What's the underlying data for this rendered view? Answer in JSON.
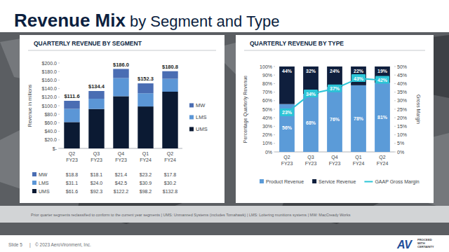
{
  "slide": {
    "title_bold": "Revenue Mix",
    "title_rest": "by Segment and Type",
    "footnote": "Prior quarter segments reclassified to conform to the current year segments | UMS: Unmanned Systems (includes Tomahawk) | LMS: Loitering munitions systems | MW: MacCready Works",
    "slide_number": "Slide 5",
    "separator": "|",
    "copyright": "© 2023 AeroVironment, Inc.",
    "logo": "AV",
    "tagline": [
      "PROCEED",
      "WITH",
      "CERTAINTY"
    ]
  },
  "chart_data": [
    {
      "type": "bar",
      "title": "QUARTERLY REVENUE BY SEGMENT",
      "stacked": true,
      "categories": [
        "Q2 FY23",
        "Q3 FY23",
        "Q4 FY23",
        "Q1 FY24",
        "Q2 FY24"
      ],
      "y_label": "Revenue in millions",
      "ylim": [
        0,
        200
      ],
      "yticks": [
        {
          "value": 0,
          "label": "$-"
        },
        {
          "value": 20,
          "label": "$20.0"
        },
        {
          "value": 40,
          "label": "$40.0"
        },
        {
          "value": 60,
          "label": "$60.0"
        },
        {
          "value": 80,
          "label": "$80.0"
        },
        {
          "value": 100,
          "label": "$100.0"
        },
        {
          "value": 120,
          "label": "$120.0"
        },
        {
          "value": 140,
          "label": "$140.0"
        },
        {
          "value": 160,
          "label": "$160.0"
        },
        {
          "value": 180,
          "label": "$180.0"
        },
        {
          "value": 200,
          "label": "$200.0"
        }
      ],
      "grid": false,
      "legend": "right",
      "series": [
        {
          "name": "UMS",
          "color": "#0b1a33",
          "values": [
            61.6,
            92.3,
            122.2,
            98.2,
            132.8
          ],
          "value_labels": [
            "$61.6",
            "$92.3",
            "$122.2",
            "$98.2",
            "$132.8"
          ]
        },
        {
          "name": "LMS",
          "color": "#5b96d6",
          "values": [
            31.1,
            24.0,
            42.5,
            30.9,
            30.2
          ],
          "value_labels": [
            "$31.1",
            "$24.0",
            "$42.5",
            "$30.9",
            "$30.2"
          ]
        },
        {
          "name": "MW",
          "color": "#4a6db3",
          "values": [
            18.8,
            18.1,
            21.4,
            23.2,
            17.8
          ],
          "value_labels": [
            "$18.8",
            "$18.1",
            "$21.4",
            "$23.2",
            "$17.8"
          ]
        }
      ],
      "totals": [
        111.6,
        134.4,
        186.0,
        152.3,
        180.8
      ],
      "total_labels": [
        "$111.6",
        "$134.4",
        "$186.0",
        "$152.3",
        "$180.8"
      ]
    },
    {
      "type": "bar",
      "title": "QUARTERLY REVENUE BY TYPE",
      "stacked": true,
      "categories": [
        "Q2 FY23",
        "Q3 FY23",
        "Q4 FY23",
        "Q1 FY24",
        "Q2 FY24"
      ],
      "y_label": "Percentage Quarterly Revenue",
      "y2_label": "Gross Margin",
      "ylim": [
        0,
        100
      ],
      "yticks": [
        {
          "value": 0,
          "label": "0%"
        },
        {
          "value": 10,
          "label": "10%"
        },
        {
          "value": 20,
          "label": "20%"
        },
        {
          "value": 30,
          "label": "30%"
        },
        {
          "value": 40,
          "label": "40%"
        },
        {
          "value": 50,
          "label": "50%"
        },
        {
          "value": 60,
          "label": "60%"
        },
        {
          "value": 70,
          "label": "70%"
        },
        {
          "value": 80,
          "label": "80%"
        },
        {
          "value": 90,
          "label": "90%"
        },
        {
          "value": 100,
          "label": "100%"
        }
      ],
      "y2lim": [
        0,
        50
      ],
      "y2ticks": [
        {
          "value": 0,
          "label": "0%"
        },
        {
          "value": 5,
          "label": "5%"
        },
        {
          "value": 10,
          "label": "10%"
        },
        {
          "value": 15,
          "label": "15%"
        },
        {
          "value": 20,
          "label": "20%"
        },
        {
          "value": 25,
          "label": "25%"
        },
        {
          "value": 30,
          "label": "30%"
        },
        {
          "value": 35,
          "label": "35%"
        },
        {
          "value": 40,
          "label": "40%"
        },
        {
          "value": 45,
          "label": "45%"
        },
        {
          "value": 50,
          "label": "50%"
        }
      ],
      "grid": false,
      "legend": "bottom",
      "data_labels": true,
      "series": [
        {
          "name": "Product Revenue",
          "color": "#5b9bd8",
          "values": [
            56,
            68,
            76,
            78,
            81
          ],
          "value_labels": [
            "56%",
            "68%",
            "76%",
            "78%",
            "81%"
          ]
        },
        {
          "name": "Service Revenue",
          "color": "#0f1f3d",
          "values": [
            44,
            32,
            24,
            22,
            19
          ],
          "value_labels": [
            "44%",
            "32%",
            "24%",
            "22%",
            "19%"
          ]
        },
        {
          "name": "GAAP Gross Margin",
          "type": "line",
          "axis": "y2",
          "color": "#2bc4d6",
          "values": [
            23,
            34,
            37,
            43,
            42
          ],
          "value_labels": [
            "23%",
            "34%",
            "37%",
            "43%",
            "42%"
          ]
        }
      ]
    }
  ]
}
